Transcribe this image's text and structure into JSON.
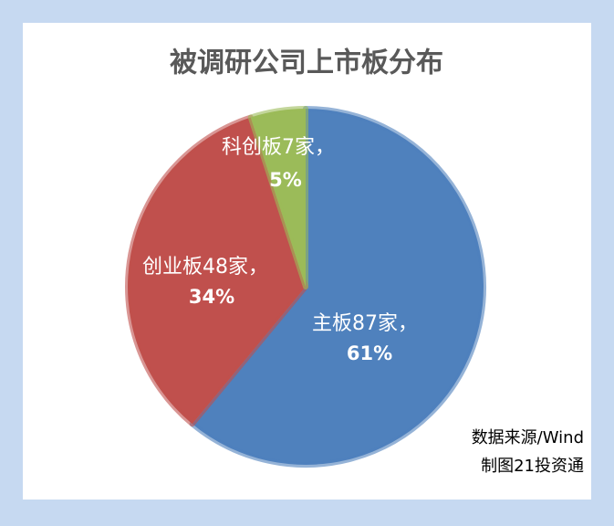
{
  "chart_data": {
    "type": "pie",
    "title": "被调研公司上市板分布",
    "categories": [
      "主板87家，",
      "创业板48家，",
      "科创板7家，"
    ],
    "values": [
      61,
      34,
      5
    ],
    "value_labels": [
      "61%",
      "34%",
      "5%"
    ],
    "colors": [
      "#4f81bd",
      "#c0504d",
      "#9bbb59"
    ],
    "annotations": [
      "数据来源/Wind",
      "制图21投资通"
    ]
  }
}
